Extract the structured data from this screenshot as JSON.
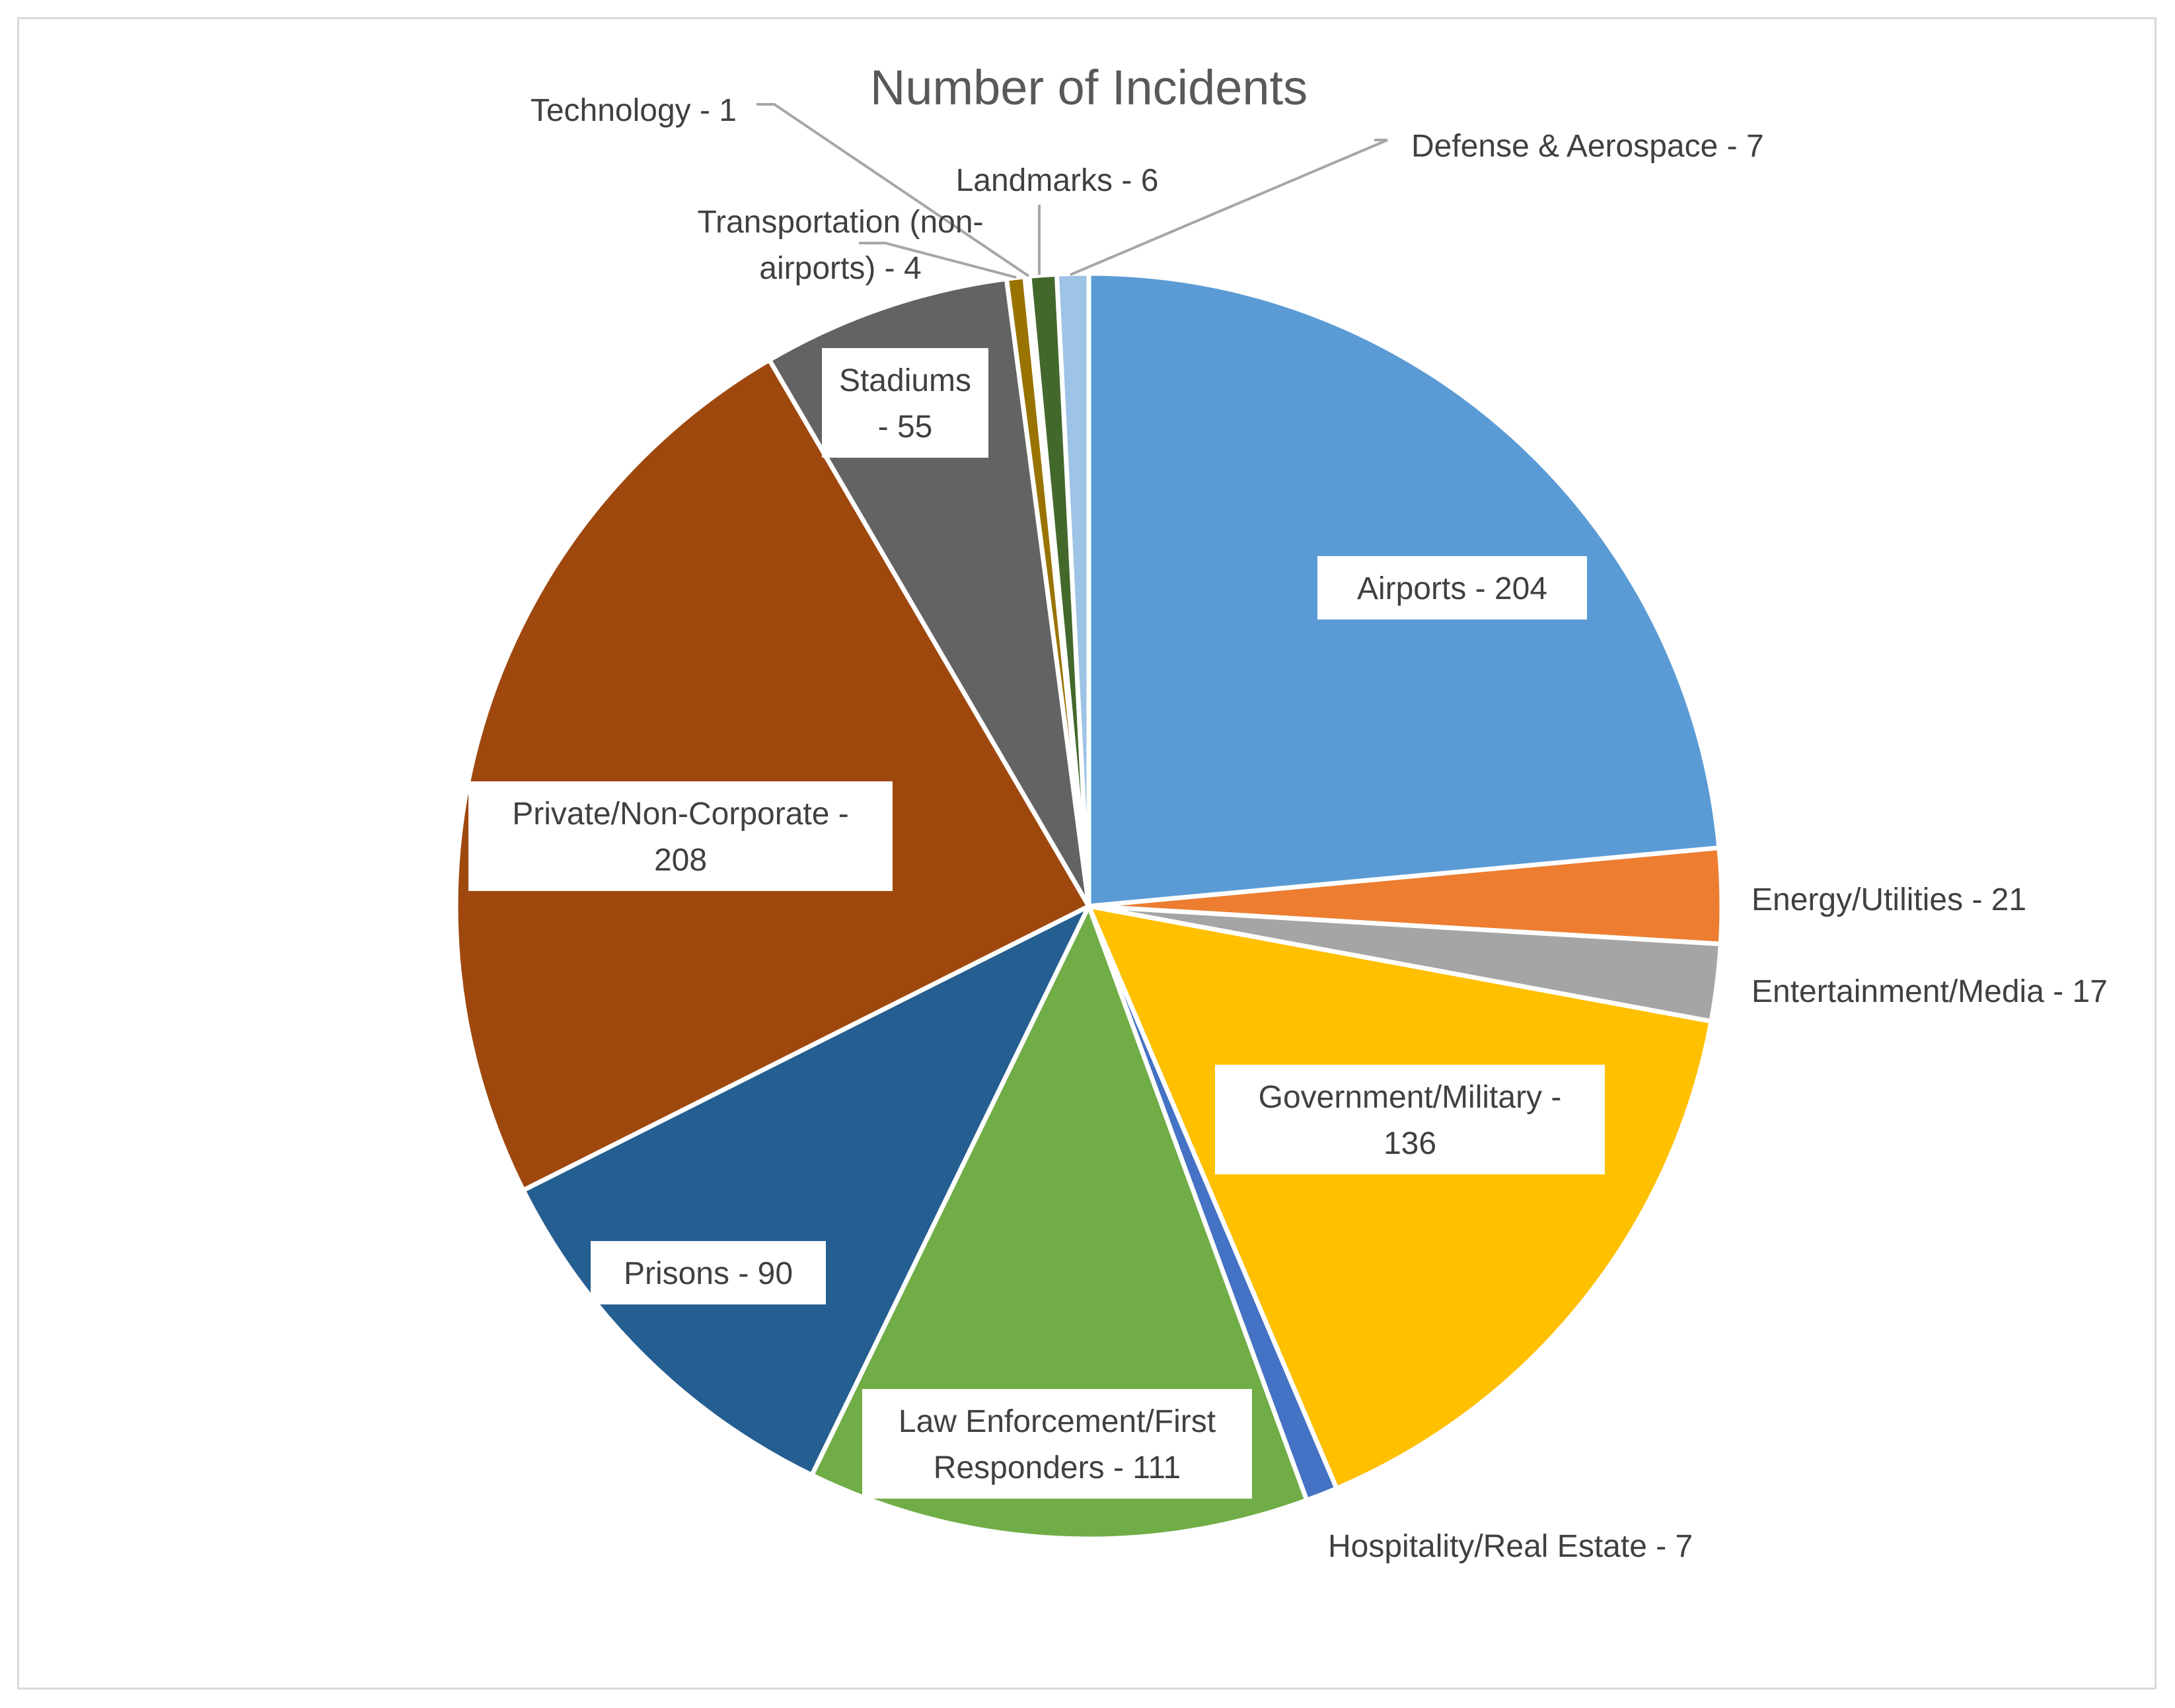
{
  "chart_data": {
    "type": "pie",
    "title": "Number of Incidents",
    "slices": [
      {
        "name": "Airports",
        "value": 204,
        "color": "#5b9bd5",
        "label_lines": [
          "Airports - 204"
        ],
        "label_style": "boxed"
      },
      {
        "name": "Energy/Utilities",
        "value": 21,
        "color": "#ed7d31",
        "label_lines": [
          "Energy/Utilities - 21"
        ],
        "label_style": "outside"
      },
      {
        "name": "Entertainment/Media",
        "value": 17,
        "color": "#a5a5a5",
        "label_lines": [
          "Entertainment/Media - 17"
        ],
        "label_style": "outside"
      },
      {
        "name": "Government/Military",
        "value": 136,
        "color": "#ffc000",
        "label_lines": [
          "Government/Military -",
          "136"
        ],
        "label_style": "boxed"
      },
      {
        "name": "Hospitality/Real Estate",
        "value": 7,
        "color": "#4472c4",
        "label_lines": [
          "Hospitality/Real Estate - 7"
        ],
        "label_style": "outside"
      },
      {
        "name": "Law Enforcement/First Responders",
        "value": 111,
        "color": "#70ad47",
        "label_lines": [
          "Law Enforcement/First",
          "Responders - 111"
        ],
        "label_style": "boxed"
      },
      {
        "name": "Prisons",
        "value": 90,
        "color": "#255e91",
        "label_lines": [
          "Prisons - 90"
        ],
        "label_style": "boxed"
      },
      {
        "name": "Private/Non-Corporate",
        "value": 208,
        "color": "#9e480e",
        "label_lines": [
          "Private/Non-Corporate -",
          "208"
        ],
        "label_style": "boxed"
      },
      {
        "name": "Stadiums",
        "value": 55,
        "color": "#636363",
        "label_lines": [
          "Stadiums",
          "- 55"
        ],
        "label_style": "boxed"
      },
      {
        "name": "Transportation (non-airports)",
        "value": 4,
        "color": "#997300",
        "label_lines": [
          "Transportation (non-",
          "airports) - 4"
        ],
        "label_style": "leader"
      },
      {
        "name": "Technology",
        "value": 1,
        "color": "#264478",
        "label_lines": [
          "Technology - 1"
        ],
        "label_style": "leader"
      },
      {
        "name": "Landmarks",
        "value": 6,
        "color": "#43682b",
        "label_lines": [
          "Landmarks - 6"
        ],
        "label_style": "leader"
      },
      {
        "name": "Defense & Aerospace",
        "value": 7,
        "color": "#9dc3e6",
        "label_lines": [
          "Defense & Aerospace - 7"
        ],
        "label_style": "leader"
      }
    ]
  }
}
